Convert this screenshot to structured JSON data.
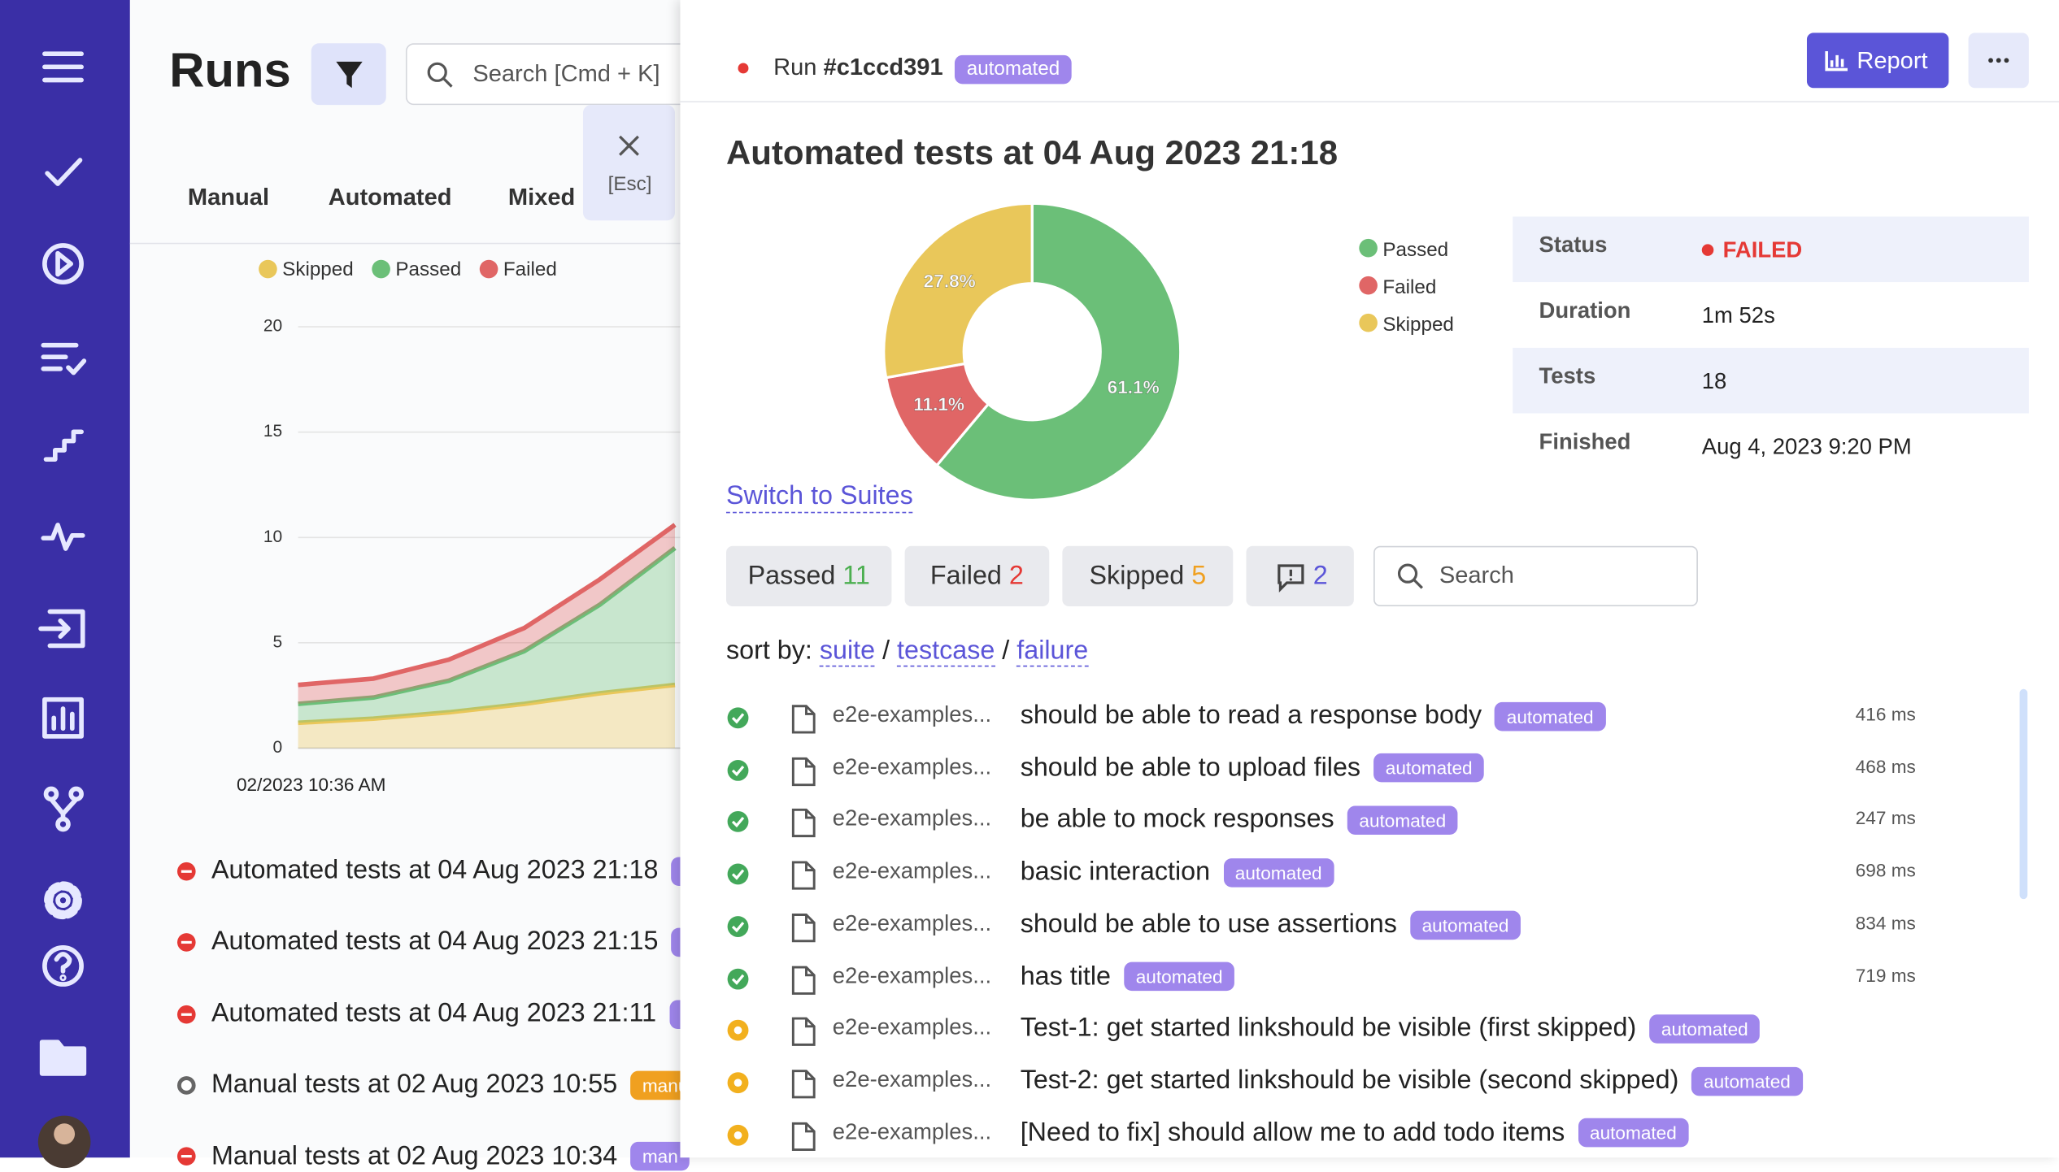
{
  "runs_panel": {
    "title": "Runs",
    "search_placeholder": "Search [Cmd + K]",
    "close_hint": "[Esc]",
    "tabs": [
      "Manual",
      "Automated",
      "Mixed"
    ],
    "runs": [
      {
        "title": "Automated tests at 04 Aug 2023 21:18",
        "tag": "a",
        "status": "failed"
      },
      {
        "title": "Automated tests at 04 Aug 2023 21:15",
        "tag": "a",
        "status": "failed"
      },
      {
        "title": "Automated tests at 04 Aug 2023 21:11",
        "tag": "a",
        "status": "failed"
      },
      {
        "title": "Manual tests at 02 Aug 2023 10:55",
        "tag": "manu",
        "status": "manual"
      },
      {
        "title": "Manual tests at 02 Aug 2023 10:34",
        "tag": "man",
        "status": "failed"
      }
    ]
  },
  "chart_data": [
    {
      "type": "area",
      "stacked": true,
      "categories": [
        "02/2023 10:36 AM",
        null,
        null,
        null,
        null,
        null
      ],
      "series": [
        {
          "name": "Skipped",
          "color": "#e9c75a",
          "values": [
            1.2,
            1.4,
            1.7,
            2.1,
            2.6,
            3.0
          ]
        },
        {
          "name": "Passed",
          "color": "#6bbf78",
          "values": [
            0.9,
            1.0,
            1.5,
            2.5,
            4.2,
            6.5
          ]
        },
        {
          "name": "Failed",
          "color": "#e06666",
          "values": [
            0.9,
            0.9,
            1.0,
            1.1,
            1.2,
            1.1
          ]
        }
      ],
      "ylim": [
        0,
        20
      ],
      "yticks": [
        0,
        5,
        10,
        15,
        20
      ],
      "grid": true
    },
    {
      "type": "pie",
      "donut": true,
      "categories": [
        "Passed",
        "Failed",
        "Skipped"
      ],
      "values": [
        61.1,
        11.1,
        27.8
      ],
      "value_labels": [
        "61.1%",
        "11.1%",
        "27.8%"
      ],
      "colors": [
        "#6bbf78",
        "#e06666",
        "#e9c75a"
      ]
    }
  ],
  "run_panel": {
    "run_label": "Run",
    "run_id": "#c1ccd391",
    "run_tag": "automated",
    "report_button": "Report",
    "title": "Automated tests at 04 Aug 2023 21:18",
    "details": [
      {
        "label": "Status",
        "value": "FAILED"
      },
      {
        "label": "Duration",
        "value": "1m 52s"
      },
      {
        "label": "Tests",
        "value": 18
      },
      {
        "label": "Finished",
        "value": "Aug 4, 2023 9:20 PM"
      }
    ],
    "switch_link": "Switch to Suites",
    "filters": [
      {
        "label": "Passed",
        "count": 11,
        "color": "#4caf50"
      },
      {
        "label": "Failed",
        "count": 2,
        "color": "#e53935"
      },
      {
        "label": "Skipped",
        "count": 5,
        "color": "#f0a020"
      }
    ],
    "comments_count": 2,
    "search_placeholder": "Search",
    "sort_label": "sort by:",
    "sort_separator": "/",
    "sort_options": [
      "suite",
      "testcase",
      "failure"
    ],
    "tests": [
      {
        "status": "passed",
        "suite": "e2e-examples...",
        "title": "should be able to read a response body",
        "tag": "automated",
        "duration": "416 ms"
      },
      {
        "status": "passed",
        "suite": "e2e-examples...",
        "title": "should be able to upload files",
        "tag": "automated",
        "duration": "468 ms"
      },
      {
        "status": "passed",
        "suite": "e2e-examples...",
        "title": "be able to mock responses",
        "tag": "automated",
        "duration": "247 ms"
      },
      {
        "status": "passed",
        "suite": "e2e-examples...",
        "title": "basic interaction",
        "tag": "automated",
        "duration": "698 ms"
      },
      {
        "status": "passed",
        "suite": "e2e-examples...",
        "title": "should be able to use assertions",
        "tag": "automated",
        "duration": "834 ms"
      },
      {
        "status": "passed",
        "suite": "e2e-examples...",
        "title": "has title",
        "tag": "automated",
        "duration": "719 ms"
      },
      {
        "status": "skipped",
        "suite": "e2e-examples...",
        "title": "Test-1: get started linkshould be visible (first skipped)",
        "tag": "automated"
      },
      {
        "status": "skipped",
        "suite": "e2e-examples...",
        "title": "Test-2: get started linkshould be visible (second skipped)",
        "tag": "automated"
      },
      {
        "status": "skipped",
        "suite": "e2e-examples...",
        "title": "[Need to fix] should allow me to add todo items",
        "tag": "automated"
      }
    ]
  }
}
